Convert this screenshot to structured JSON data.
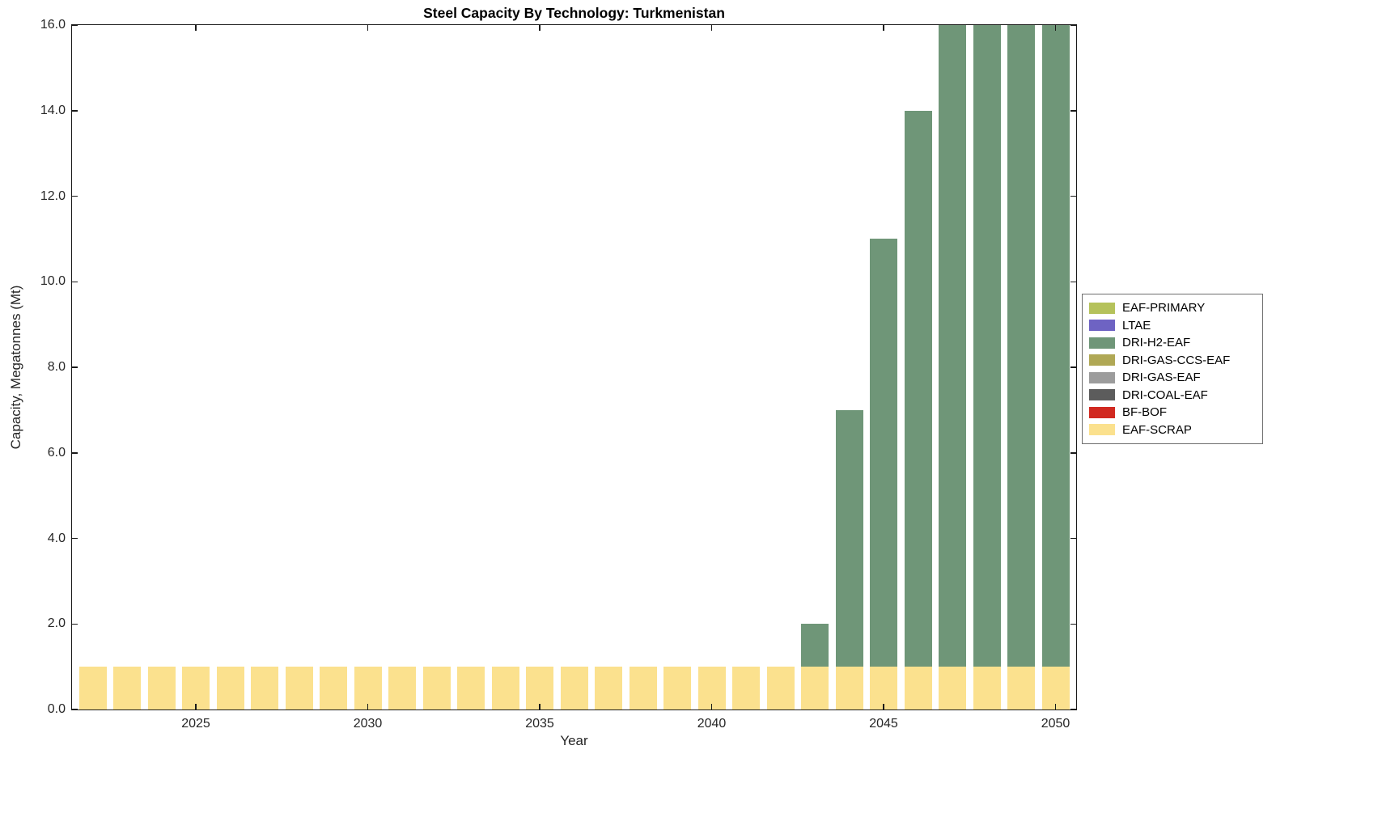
{
  "chart_data": {
    "type": "bar",
    "stacked": true,
    "title": "Steel Capacity By Technology: Turkmenistan",
    "xlabel": "Year",
    "ylabel": "Capacity, Megatonnes (Mt)",
    "xlim": [
      2021.4,
      2050.6
    ],
    "ylim": [
      0,
      16
    ],
    "grid": false,
    "bar_width": 0.8,
    "xticks": {
      "values": [
        2025,
        2030,
        2035,
        2040,
        2045,
        2050
      ],
      "labels": [
        "2025",
        "2030",
        "2035",
        "2040",
        "2045",
        "2050"
      ]
    },
    "yticks": {
      "values": [
        0,
        2,
        4,
        6,
        8,
        10,
        12,
        14,
        16
      ],
      "labels": [
        "0.0",
        "2.0",
        "4.0",
        "6.0",
        "8.0",
        "10.0",
        "12.0",
        "14.0",
        "16.0"
      ]
    },
    "years": [
      2022,
      2023,
      2024,
      2025,
      2026,
      2027,
      2028,
      2029,
      2030,
      2031,
      2032,
      2033,
      2034,
      2035,
      2036,
      2037,
      2038,
      2039,
      2040,
      2041,
      2042,
      2043,
      2044,
      2045,
      2046,
      2047,
      2048,
      2049,
      2050
    ],
    "series": [
      {
        "name": "EAF-SCRAP",
        "color": "#FBE18E",
        "values": [
          1,
          1,
          1,
          1,
          1,
          1,
          1,
          1,
          1,
          1,
          1,
          1,
          1,
          1,
          1,
          1,
          1,
          1,
          1,
          1,
          1,
          1,
          1,
          1,
          1,
          1,
          1,
          1,
          1
        ]
      },
      {
        "name": "DRI-H2-EAF",
        "color": "#6F9678",
        "values": [
          0,
          0,
          0,
          0,
          0,
          0,
          0,
          0,
          0,
          0,
          0,
          0,
          0,
          0,
          0,
          0,
          0,
          0,
          0,
          0,
          0,
          1,
          6,
          10,
          13,
          15,
          15,
          15,
          15
        ]
      }
    ],
    "legend": {
      "position": "right-outside",
      "entries": [
        {
          "label": "EAF-PRIMARY",
          "color": "#B5C25B"
        },
        {
          "label": "LTAE",
          "color": "#6E63C3"
        },
        {
          "label": "DRI-H2-EAF",
          "color": "#6F9678"
        },
        {
          "label": "DRI-GAS-CCS-EAF",
          "color": "#B0A855"
        },
        {
          "label": "DRI-GAS-EAF",
          "color": "#9C9C9C"
        },
        {
          "label": "DRI-COAL-EAF",
          "color": "#5C5C5C"
        },
        {
          "label": "BF-BOF",
          "color": "#D12920"
        },
        {
          "label": "EAF-SCRAP",
          "color": "#FBE18E"
        }
      ]
    }
  }
}
